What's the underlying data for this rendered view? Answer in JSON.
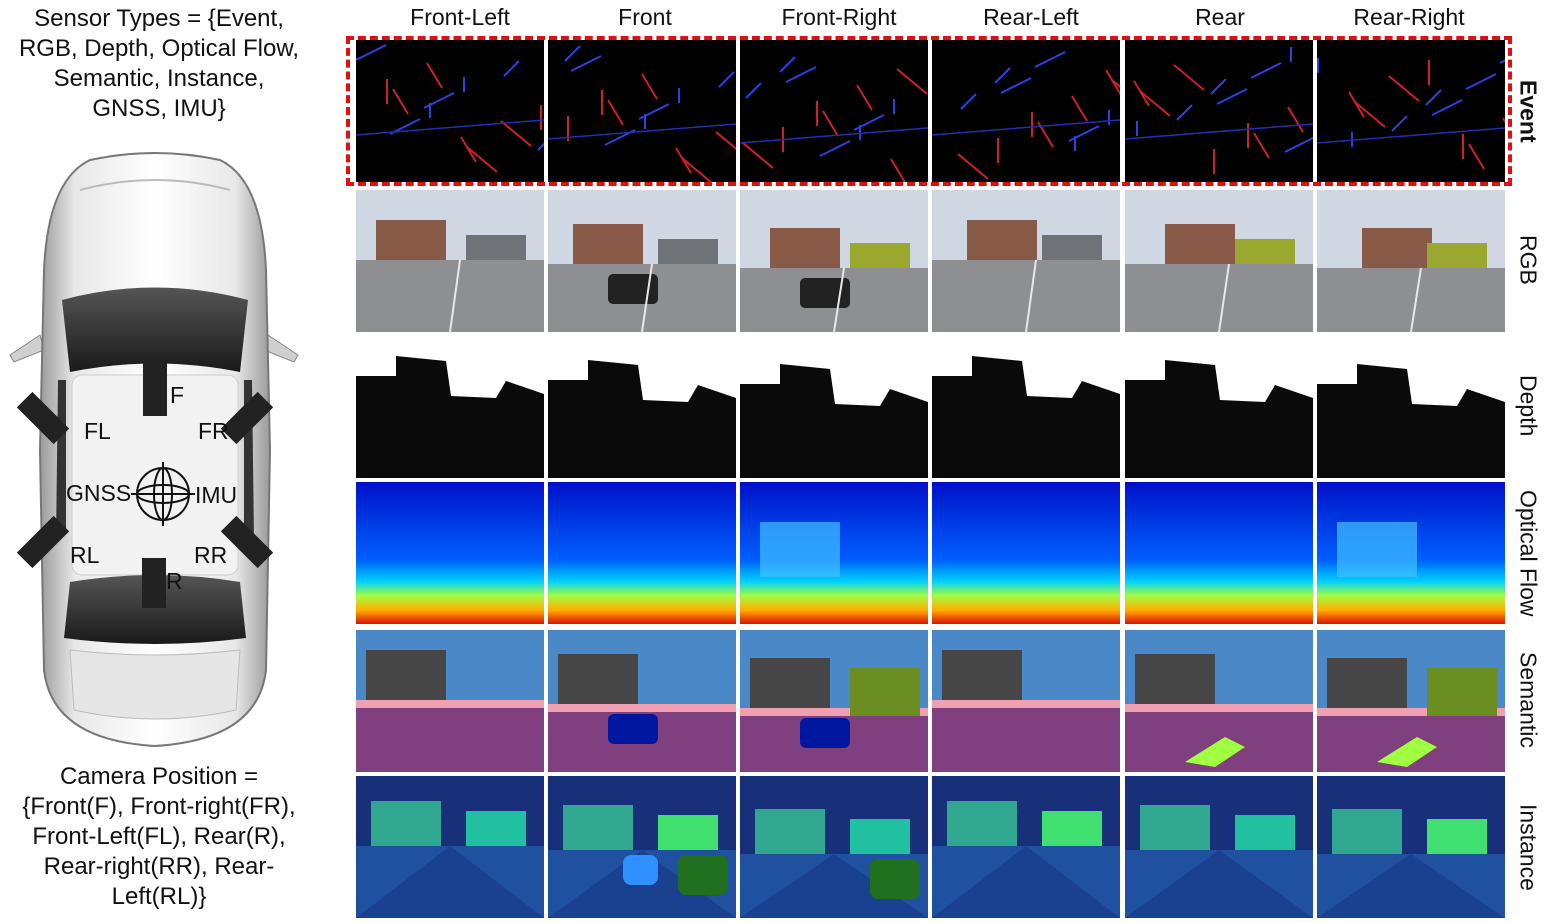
{
  "sensor_types_text": "Sensor Types = {Event, RGB, Depth, Optical Flow, Semantic, Instance, GNSS, IMU}",
  "camera_position_text": "Camera Position = {Front(F), Front-right(FR), Front-Left(FL), Rear(R), Rear-right(RR), Rear-Left(RL)}",
  "car_labels": {
    "front": "F",
    "front_left": "FL",
    "front_right": "FR",
    "rear_left": "RL",
    "rear_right": "RR",
    "rear": "R",
    "gnss": "GNSS",
    "imu": "IMU"
  },
  "columns": [
    "Front-Left",
    "Front",
    "Front-Right",
    "Rear-Left",
    "Rear",
    "Rear-Right"
  ],
  "rows": [
    "Event",
    "RGB",
    "Depth",
    "Optical Flow",
    "Semantic",
    "Instance"
  ],
  "highlight_color": "#e01010"
}
